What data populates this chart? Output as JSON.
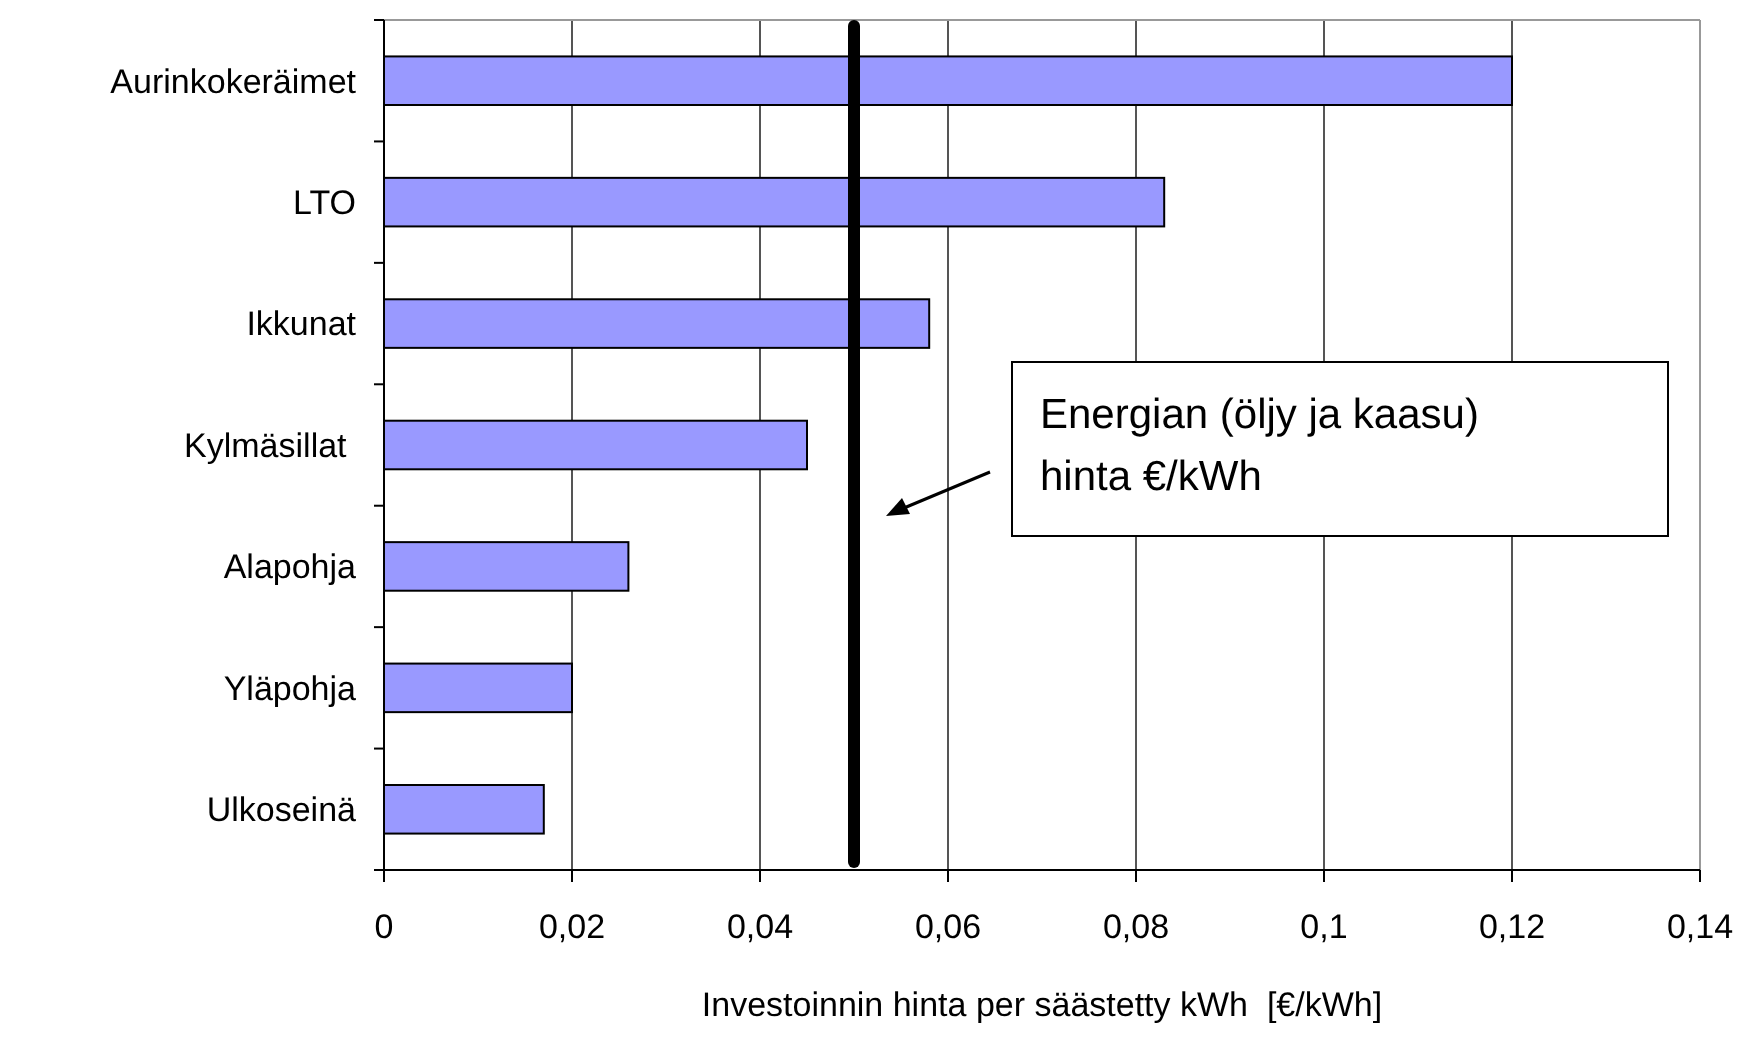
{
  "chart_data": {
    "type": "bar",
    "orientation": "horizontal",
    "xlabel": "Investoinnin hinta per säästetty kWh  [€/kWh]",
    "categories": [
      "Aurinkokeräimet",
      "LTO",
      "Ikkunat",
      "Kylmäsillat ",
      "Alapohja",
      "Yläpohja",
      "Ulkoseinä"
    ],
    "values": [
      0.12,
      0.083,
      0.058,
      0.045,
      0.026,
      0.02,
      0.017
    ],
    "color": "#9999ff",
    "xlim": [
      0,
      0.14
    ],
    "xticks": [
      0,
      {
        "value": 0.02,
        "label": "0,02"
      },
      {
        "value": 0.04,
        "label": "0,04"
      },
      {
        "value": 0.06,
        "label": "0,06"
      },
      {
        "value": 0.08,
        "label": "0,08"
      },
      {
        "value": 0.1,
        "label": "0,1"
      },
      {
        "value": 0.12,
        "label": "0,12"
      },
      {
        "value": 0.14,
        "label": "0,14"
      }
    ],
    "grid": "x",
    "ref_lines": [
      {
        "axis": "x",
        "value": 0.05,
        "label": "Energian (öljy ja kaasu)\nhinta €/kWh",
        "color": "#000000"
      }
    ]
  }
}
